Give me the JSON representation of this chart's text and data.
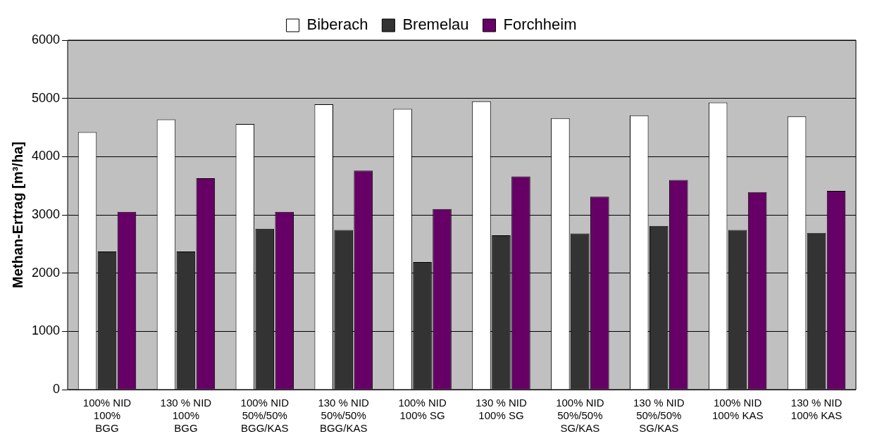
{
  "chart_data": {
    "type": "bar",
    "ylabel": "Methan-Ertrag [m³/ha]",
    "categories": [
      "100% NID\n100%\nBGG",
      "130 % NID\n100%\nBGG",
      "100% NID\n50%/50%\nBGG/KAS",
      "130 % NID\n50%/50%\nBGG/KAS",
      "100% NID\n100% SG",
      "130 % NID\n100% SG",
      "100% NID\n50%/50%\nSG/KAS",
      "130 % NID\n50%/50%\nSG/KAS",
      "100% NID\n100% KAS",
      "130 % NID\n100% KAS"
    ],
    "series": [
      {
        "name": "Biberach",
        "color": "#ffffff",
        "values": [
          4420,
          4640,
          4560,
          4900,
          4820,
          4950,
          4660,
          4710,
          4930,
          4690
        ]
      },
      {
        "name": "Bremelau",
        "color": "#333333",
        "values": [
          2370,
          2370,
          2760,
          2740,
          2190,
          2650,
          2680,
          2810,
          2740,
          2690
        ]
      },
      {
        "name": "Forchheim",
        "color": "#660066",
        "values": [
          3050,
          3630,
          3050,
          3760,
          3100,
          3660,
          3310,
          3600,
          3390,
          3410
        ]
      }
    ],
    "ylim": [
      0,
      6000
    ],
    "yticks": [
      0,
      1000,
      2000,
      3000,
      4000,
      5000,
      6000
    ],
    "grid": "y",
    "legend": "top"
  }
}
